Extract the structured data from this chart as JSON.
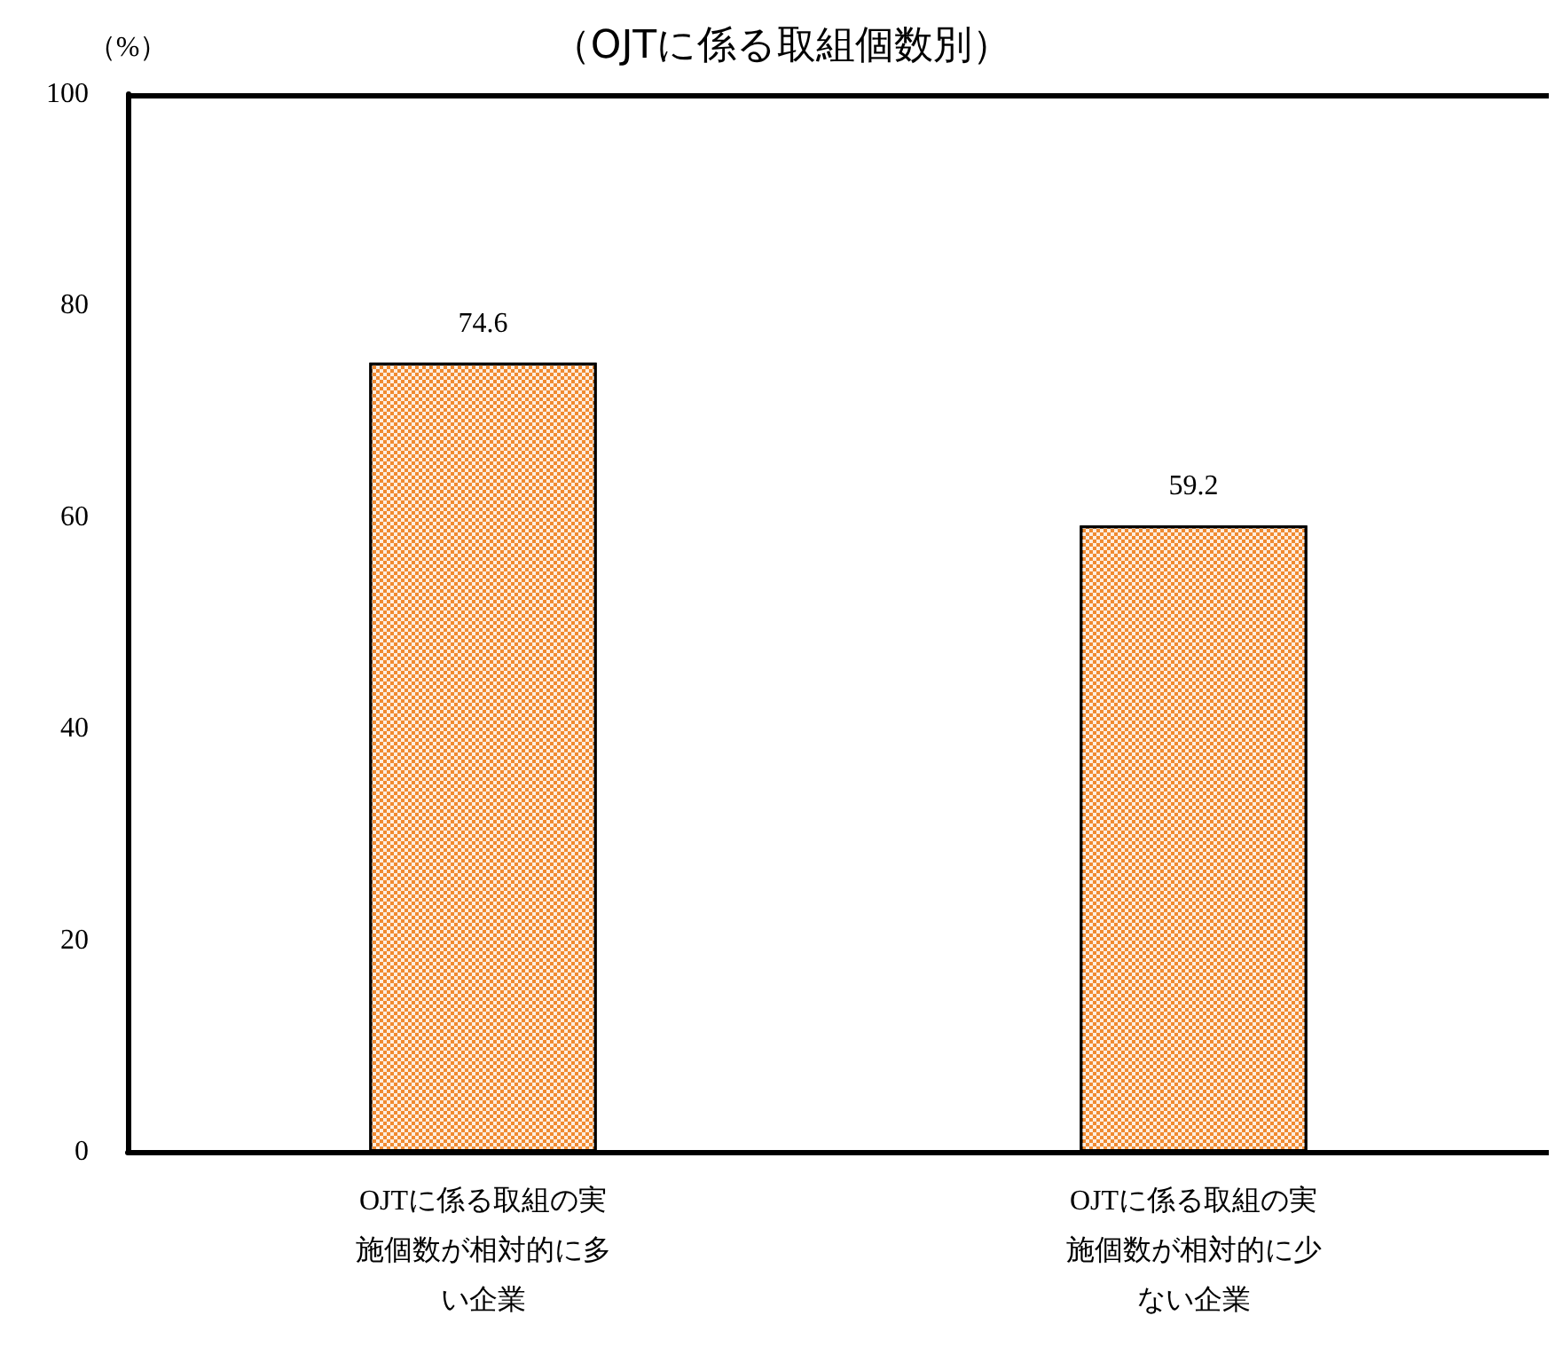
{
  "chart_data": {
    "type": "bar",
    "title": "（OJTに係る取組個数別）",
    "ylabel": "（%）",
    "categories": [
      "OJTに係る取組の実施個数が相対的に多い企業",
      "OJTに係る取組の実施個数が相対的に少ない企業"
    ],
    "values": [
      74.6,
      59.2
    ],
    "color": "#f08a30",
    "ylim": [
      0,
      100
    ],
    "yticks": [
      0,
      20,
      40,
      60,
      80,
      100
    ],
    "grid": false,
    "data_labels": true
  }
}
